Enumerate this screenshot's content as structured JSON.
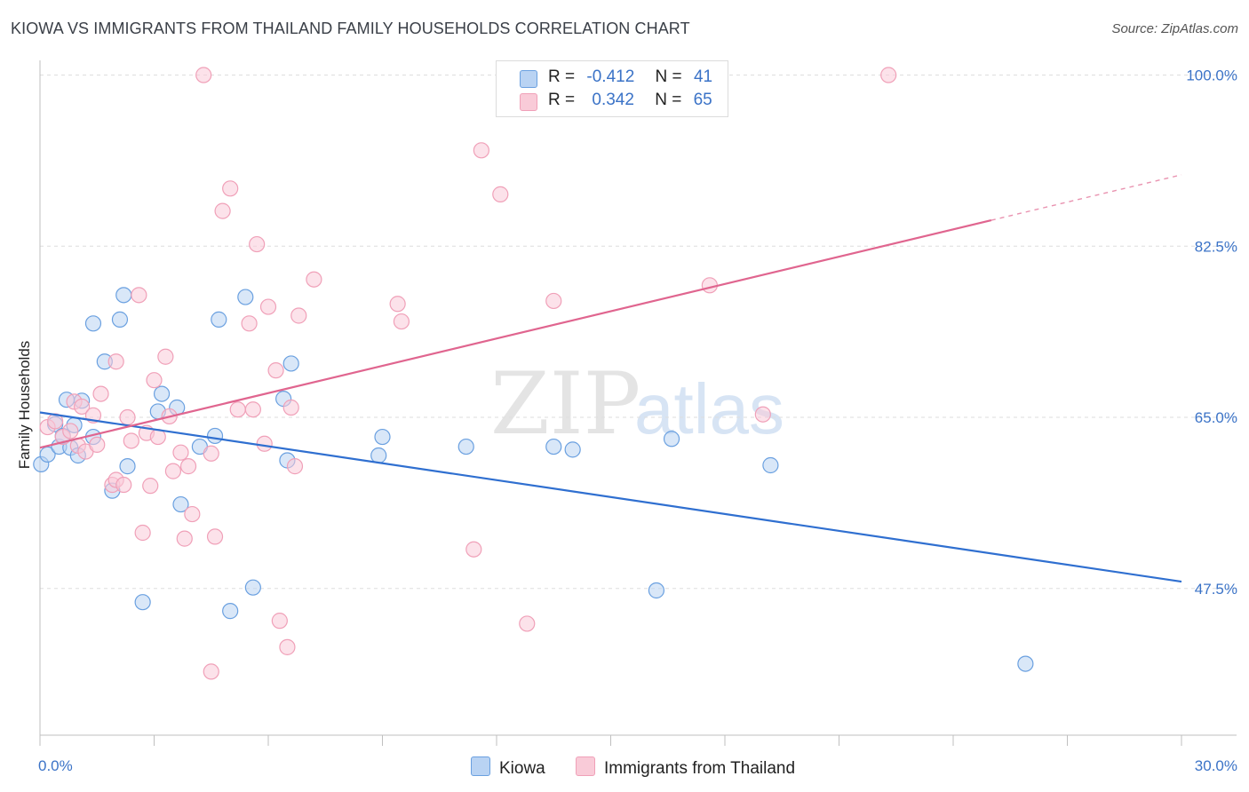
{
  "title": "KIOWA VS IMMIGRANTS FROM THAILAND FAMILY HOUSEHOLDS CORRELATION CHART",
  "source": "Source: ZipAtlas.com",
  "watermark": {
    "zip": "ZIP",
    "atlas": "atlas"
  },
  "legend": {
    "r_label": "R =",
    "n_label": "N =",
    "series": [
      {
        "r_value": "-0.412",
        "n_value": "41"
      },
      {
        "r_value": "0.342",
        "n_value": "65"
      }
    ]
  },
  "chart_data": {
    "type": "scatter",
    "title": "KIOWA VS IMMIGRANTS FROM THAILAND FAMILY HOUSEHOLDS CORRELATION CHART",
    "xlabel": "",
    "ylabel": "Family Households",
    "xlim": [
      0,
      30
    ],
    "ylim": [
      32.5,
      101.5
    ],
    "x_tick_labels": [
      {
        "value": 0,
        "label": "0.0%"
      },
      {
        "value": 30,
        "label": "30.0%"
      }
    ],
    "y_ticks": [
      {
        "value": 100,
        "label": "100.0%"
      },
      {
        "value": 82.5,
        "label": "82.5%"
      },
      {
        "value": 65,
        "label": "65.0%"
      },
      {
        "value": 47.5,
        "label": "47.5%"
      }
    ],
    "x_minor_ticks": [
      0,
      3,
      6,
      9,
      12,
      15,
      18,
      21,
      24,
      27,
      30
    ],
    "grid": true,
    "series": [
      {
        "name": "Kiowa",
        "color": "#6aa0e0",
        "fill": "#b9d3f3",
        "line_color": "#2f6fd0",
        "trend": {
          "x0": 0,
          "y0": 65.5,
          "x1": 30,
          "y1": 48.2,
          "solid_to": 30
        },
        "points": [
          [
            0.03,
            60.2
          ],
          [
            0.2,
            61.2
          ],
          [
            0.4,
            64.3
          ],
          [
            0.5,
            62.0
          ],
          [
            0.6,
            63.1
          ],
          [
            0.7,
            66.8
          ],
          [
            0.8,
            61.9
          ],
          [
            0.9,
            64.2
          ],
          [
            1.0,
            61.1
          ],
          [
            1.1,
            66.7
          ],
          [
            1.4,
            63.0
          ],
          [
            1.4,
            74.6
          ],
          [
            1.7,
            70.7
          ],
          [
            1.9,
            57.5
          ],
          [
            2.1,
            75.0
          ],
          [
            2.2,
            77.5
          ],
          [
            2.3,
            60.0
          ],
          [
            2.7,
            46.1
          ],
          [
            3.1,
            65.6
          ],
          [
            3.2,
            67.4
          ],
          [
            3.6,
            66.0
          ],
          [
            3.7,
            56.1
          ],
          [
            4.2,
            62.0
          ],
          [
            4.6,
            63.1
          ],
          [
            4.7,
            75.0
          ],
          [
            5.0,
            45.2
          ],
          [
            5.6,
            47.6
          ],
          [
            5.4,
            77.3
          ],
          [
            6.4,
            66.9
          ],
          [
            6.5,
            60.6
          ],
          [
            6.6,
            70.5
          ],
          [
            8.9,
            61.1
          ],
          [
            9.0,
            63.0
          ],
          [
            11.2,
            62.0
          ],
          [
            13.5,
            62.0
          ],
          [
            14.0,
            61.7
          ],
          [
            16.2,
            47.3
          ],
          [
            16.6,
            62.8
          ],
          [
            19.2,
            60.1
          ],
          [
            25.9,
            39.8
          ]
        ]
      },
      {
        "name": "Immigrants from Thailand",
        "color": "#f0a0b8",
        "fill": "#f9cbd8",
        "line_color": "#e0658f",
        "trend": {
          "x0": 0,
          "y0": 61.9,
          "x1": 30,
          "y1": 89.8,
          "solid_to": 25
        },
        "points": [
          [
            0.2,
            64.0
          ],
          [
            0.4,
            64.6
          ],
          [
            0.6,
            63.0
          ],
          [
            0.8,
            63.6
          ],
          [
            0.9,
            66.6
          ],
          [
            1.0,
            62.1
          ],
          [
            1.1,
            66.1
          ],
          [
            1.2,
            61.5
          ],
          [
            1.4,
            65.2
          ],
          [
            1.5,
            62.2
          ],
          [
            1.6,
            67.4
          ],
          [
            1.9,
            58.1
          ],
          [
            2.0,
            70.7
          ],
          [
            2.0,
            58.6
          ],
          [
            2.2,
            58.1
          ],
          [
            2.3,
            65.0
          ],
          [
            2.4,
            62.6
          ],
          [
            2.6,
            77.5
          ],
          [
            2.7,
            53.2
          ],
          [
            2.8,
            63.4
          ],
          [
            2.9,
            58.0
          ],
          [
            3.0,
            68.8
          ],
          [
            3.1,
            63.0
          ],
          [
            3.3,
            71.2
          ],
          [
            3.4,
            65.1
          ],
          [
            3.5,
            59.5
          ],
          [
            3.7,
            61.4
          ],
          [
            3.8,
            52.6
          ],
          [
            3.9,
            60.0
          ],
          [
            4.0,
            55.1
          ],
          [
            4.3,
            100.0
          ],
          [
            4.5,
            61.3
          ],
          [
            4.5,
            39.0
          ],
          [
            4.6,
            52.8
          ],
          [
            4.8,
            86.1
          ],
          [
            5.0,
            88.4
          ],
          [
            5.2,
            65.8
          ],
          [
            5.5,
            74.6
          ],
          [
            5.6,
            65.8
          ],
          [
            5.7,
            82.7
          ],
          [
            5.9,
            62.3
          ],
          [
            6.0,
            76.3
          ],
          [
            6.2,
            69.8
          ],
          [
            6.3,
            44.2
          ],
          [
            6.5,
            41.5
          ],
          [
            6.6,
            66.0
          ],
          [
            6.7,
            60.0
          ],
          [
            6.8,
            75.4
          ],
          [
            7.2,
            79.1
          ],
          [
            9.4,
            76.6
          ],
          [
            9.5,
            74.8
          ],
          [
            11.4,
            51.5
          ],
          [
            11.6,
            92.3
          ],
          [
            12.1,
            87.8
          ],
          [
            12.8,
            43.9
          ],
          [
            13.5,
            76.9
          ],
          [
            17.6,
            78.5
          ],
          [
            19.0,
            65.3
          ],
          [
            22.3,
            100.0
          ]
        ]
      }
    ]
  }
}
